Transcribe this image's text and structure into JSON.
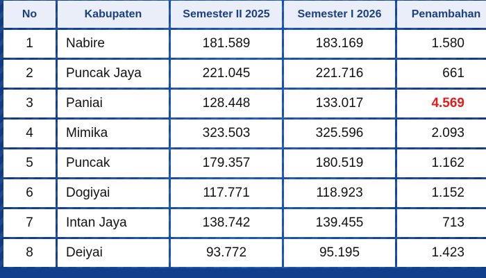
{
  "table": {
    "headers": {
      "no": "No",
      "kabupaten": "Kabupaten",
      "semester_ii_2025": "Semester II 2025",
      "semester_i_2026": "Semester I 2026",
      "penambahan": "Penambahan"
    },
    "rows": [
      {
        "no": "1",
        "kabupaten": "Nabire",
        "semester_ii_2025": "181.589",
        "semester_i_2026": "183.169",
        "penambahan": "1.580"
      },
      {
        "no": "2",
        "kabupaten": "Puncak Jaya",
        "semester_ii_2025": "221.045",
        "semester_i_2026": "221.716",
        "penambahan": "661"
      },
      {
        "no": "3",
        "kabupaten": "Paniai",
        "semester_ii_2025": "128.448",
        "semester_i_2026": "133.017",
        "penambahan": "4.569"
      },
      {
        "no": "4",
        "kabupaten": "Mimika",
        "semester_ii_2025": "323.503",
        "semester_i_2026": "325.596",
        "penambahan": "2.093"
      },
      {
        "no": "5",
        "kabupaten": "Puncak",
        "semester_ii_2025": "179.357",
        "semester_i_2026": "180.519",
        "penambahan": "1.162"
      },
      {
        "no": "6",
        "kabupaten": "Dogiyai",
        "semester_ii_2025": "117.771",
        "semester_i_2026": "118.923",
        "penambahan": "1.152"
      },
      {
        "no": "7",
        "kabupaten": "Intan Jaya",
        "semester_ii_2025": "138.742",
        "semester_i_2026": "139.455",
        "penambahan": "713"
      },
      {
        "no": "8",
        "kabupaten": "Deiyai",
        "semester_ii_2025": "93.772",
        "semester_i_2026": "95.195",
        "penambahan": "1.423"
      }
    ],
    "highlight_row_index": 2,
    "highlight_color": "#e41b1b",
    "header_text_color": "#1b3e86",
    "frame_color": "#123f8c"
  }
}
